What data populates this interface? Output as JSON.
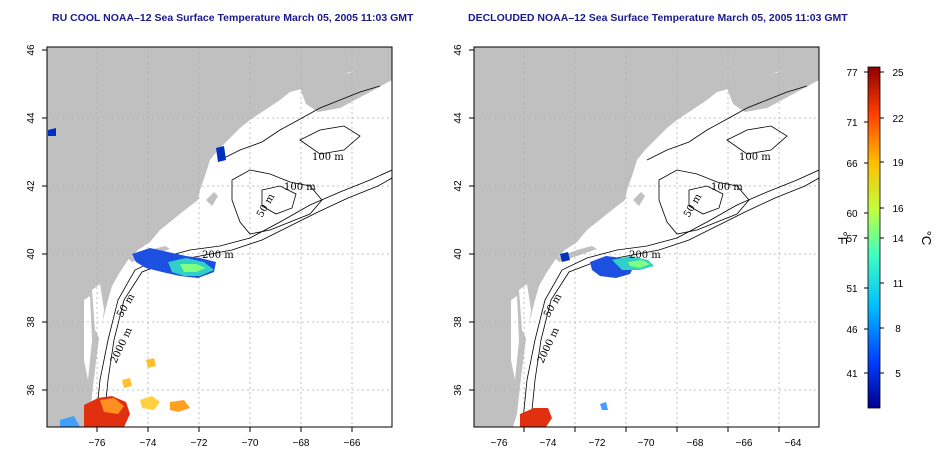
{
  "panels": [
    {
      "title": "RU COOL NOAA–12 Sea Surface Temperature March 05, 2005 11:03 GMT",
      "contour_labels": [
        "100 m",
        "100 m",
        "50 m",
        "200 m",
        "50 m",
        "2000 m"
      ]
    },
    {
      "title": "DECLOUDED NOAA–12 Sea Surface Temperature March 05, 2005 11:03 GMT",
      "contour_labels": [
        "100 m",
        "100 m",
        "50 m",
        "200 m",
        "50 m",
        "2000 m"
      ]
    }
  ],
  "axes": {
    "x_ticks": [
      "−76",
      "−74",
      "−72",
      "−70",
      "−68",
      "−66",
      "−64"
    ],
    "y_ticks": [
      "36",
      "38",
      "40",
      "42",
      "44",
      "46"
    ]
  },
  "colorbar": {
    "f_label": "°F",
    "c_label": "°C",
    "f_ticks": [
      "77",
      "71",
      "66",
      "60",
      "57",
      "51",
      "46",
      "41"
    ],
    "c_ticks": [
      "25",
      "22",
      "19",
      "16",
      "14",
      "11",
      "8",
      "5"
    ],
    "colors": [
      "#00008f",
      "#0040ff",
      "#00bfff",
      "#40ffbf",
      "#bfff40",
      "#ffbf00",
      "#ff4000",
      "#8f0000"
    ]
  },
  "colors": {
    "land": "#c0c0c0",
    "ocean": "#ffffff",
    "title": "#1a1a8c",
    "grid": "#b0b0b0"
  }
}
